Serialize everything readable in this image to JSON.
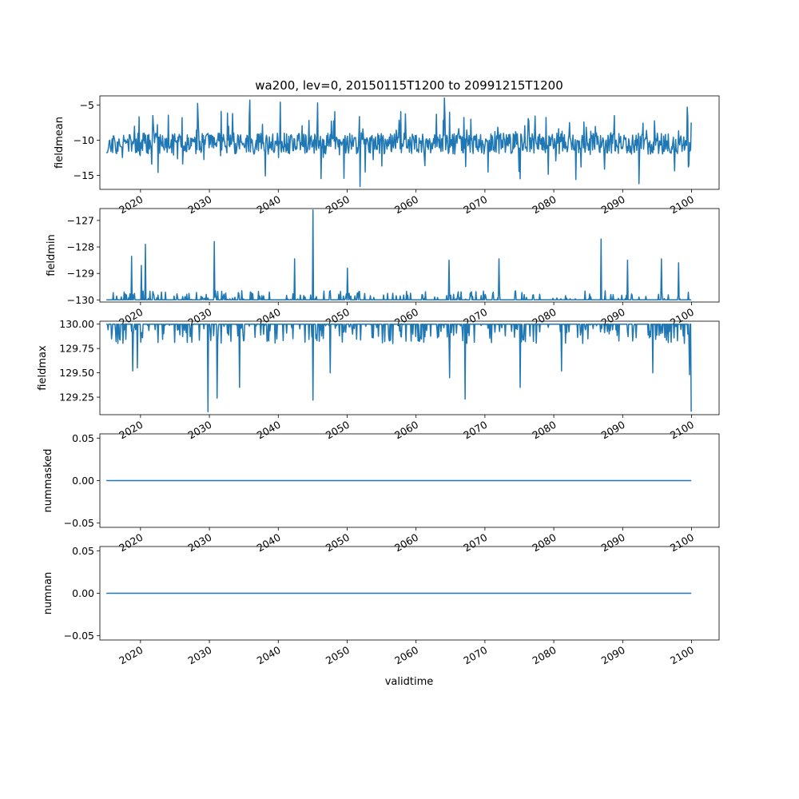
{
  "figure": {
    "title": "wa200, lev=0, 20150115T1200 to 20991215T1200",
    "xlabel": "validtime",
    "line_color": "#1f77b4"
  },
  "chart_data": [
    {
      "type": "line",
      "ylabel": "fieldmean",
      "xlim": [
        2014.1,
        2104.0
      ],
      "ylim": [
        -17.0,
        -3.7
      ],
      "yticks": [
        -15,
        -10,
        -5
      ],
      "ytick_labels": [
        "−15",
        "−10",
        "−5"
      ],
      "xticks": [
        2020,
        2030,
        2040,
        2050,
        2060,
        2070,
        2080,
        2090,
        2100
      ],
      "xtick_labels": [
        "2020",
        "2030",
        "2040",
        "2050",
        "2060",
        "2070",
        "2080",
        "2090",
        "2100"
      ],
      "series_params": {
        "start": 2015.04,
        "end": 2099.96,
        "step": 0.08333,
        "baseline": -10.5,
        "noise": 1.5,
        "up_rate": 0.09,
        "up_mag": 4.5,
        "down_rate": 0.04,
        "down_mag": 4.0,
        "seed": 11
      },
      "anchors": [
        {
          "x": 2015.04,
          "y": -11.8
        },
        {
          "x": 2021.8,
          "y": -6.5
        },
        {
          "x": 2022.5,
          "y": -14.6
        },
        {
          "x": 2026.0,
          "y": -6.8
        },
        {
          "x": 2035.9,
          "y": -4.3
        },
        {
          "x": 2040.3,
          "y": -4.6
        },
        {
          "x": 2045.7,
          "y": -4.7
        },
        {
          "x": 2051.9,
          "y": -16.6
        },
        {
          "x": 2064.1,
          "y": -4.0
        },
        {
          "x": 2083.2,
          "y": -15.6
        },
        {
          "x": 2092.4,
          "y": -16.2
        },
        {
          "x": 2099.4,
          "y": -5.3
        },
        {
          "x": 2099.96,
          "y": -7.5
        }
      ]
    },
    {
      "type": "line",
      "ylabel": "fieldmin",
      "xlim": [
        2014.1,
        2104.0
      ],
      "ylim": [
        -130.08,
        -126.55
      ],
      "yticks": [
        -130,
        -129,
        -128,
        -127
      ],
      "ytick_labels": [
        "−130",
        "−129",
        "−128",
        "−127"
      ],
      "xticks": [
        2020,
        2030,
        2040,
        2050,
        2060,
        2070,
        2080,
        2090,
        2100
      ],
      "xtick_labels": [
        "2020",
        "2030",
        "2040",
        "2050",
        "2060",
        "2070",
        "2080",
        "2090",
        "2100"
      ],
      "series_params": {
        "start": 2015.04,
        "end": 2099.96,
        "step": 0.08333,
        "baseline": -130.0,
        "noise": 0.0,
        "up_rate": 0.16,
        "up_mag": 0.35,
        "down_rate": 0.0,
        "down_mag": 0.0,
        "seed": 23
      },
      "anchors": [
        {
          "x": 2018.7,
          "y": -128.35
        },
        {
          "x": 2020.1,
          "y": -128.7
        },
        {
          "x": 2020.7,
          "y": -127.9
        },
        {
          "x": 2030.7,
          "y": -127.8
        },
        {
          "x": 2042.4,
          "y": -128.45
        },
        {
          "x": 2045.0,
          "y": -126.6
        },
        {
          "x": 2050.0,
          "y": -128.8
        },
        {
          "x": 2064.8,
          "y": -128.5
        },
        {
          "x": 2072.0,
          "y": -128.45
        },
        {
          "x": 2086.9,
          "y": -127.7
        },
        {
          "x": 2090.7,
          "y": -128.5
        },
        {
          "x": 2095.6,
          "y": -128.45
        },
        {
          "x": 2098.1,
          "y": -128.6
        }
      ]
    },
    {
      "type": "line",
      "ylabel": "fieldmax",
      "xlim": [
        2014.1,
        2104.0
      ],
      "ylim": [
        129.07,
        130.03
      ],
      "yticks": [
        129.25,
        129.5,
        129.75,
        130.0
      ],
      "ytick_labels": [
        "129.25",
        "129.50",
        "129.75",
        "130.00"
      ],
      "xticks": [
        2020,
        2030,
        2040,
        2050,
        2060,
        2070,
        2080,
        2090,
        2100
      ],
      "xtick_labels": [
        "2020",
        "2030",
        "2040",
        "2050",
        "2060",
        "2070",
        "2080",
        "2090",
        "2100"
      ],
      "series_params": {
        "start": 2015.04,
        "end": 2099.96,
        "step": 0.08333,
        "baseline": 130.0,
        "noise": 0.0,
        "up_rate": 0.0,
        "up_mag": 0.0,
        "down_rate": 0.22,
        "down_mag": 0.2,
        "seed": 37
      },
      "anchors": [
        {
          "x": 2018.9,
          "y": 129.52
        },
        {
          "x": 2019.5,
          "y": 129.55
        },
        {
          "x": 2029.8,
          "y": 129.1
        },
        {
          "x": 2031.1,
          "y": 129.24
        },
        {
          "x": 2034.4,
          "y": 129.35
        },
        {
          "x": 2045.0,
          "y": 129.22
        },
        {
          "x": 2047.5,
          "y": 129.5
        },
        {
          "x": 2064.9,
          "y": 129.45
        },
        {
          "x": 2067.1,
          "y": 129.23
        },
        {
          "x": 2075.1,
          "y": 129.35
        },
        {
          "x": 2081.1,
          "y": 129.52
        },
        {
          "x": 2094.4,
          "y": 129.5
        },
        {
          "x": 2099.7,
          "y": 129.48
        },
        {
          "x": 2099.96,
          "y": 129.1
        }
      ]
    },
    {
      "type": "line",
      "ylabel": "nummasked",
      "xlim": [
        2014.1,
        2104.0
      ],
      "ylim": [
        -0.055,
        0.055
      ],
      "yticks": [
        -0.05,
        0.0,
        0.05
      ],
      "ytick_labels": [
        "−0.05",
        "0.00",
        "0.05"
      ],
      "xticks": [
        2020,
        2030,
        2040,
        2050,
        2060,
        2070,
        2080,
        2090,
        2100
      ],
      "xtick_labels": [
        "2020",
        "2030",
        "2040",
        "2050",
        "2060",
        "2070",
        "2080",
        "2090",
        "2100"
      ],
      "x": [
        2015.04,
        2099.96
      ],
      "y": [
        0,
        0
      ]
    },
    {
      "type": "line",
      "ylabel": "numnan",
      "xlim": [
        2014.1,
        2104.0
      ],
      "ylim": [
        -0.055,
        0.055
      ],
      "yticks": [
        -0.05,
        0.0,
        0.05
      ],
      "ytick_labels": [
        "−0.05",
        "0.00",
        "0.05"
      ],
      "xticks": [
        2020,
        2030,
        2040,
        2050,
        2060,
        2070,
        2080,
        2090,
        2100
      ],
      "xtick_labels": [
        "2020",
        "2030",
        "2040",
        "2050",
        "2060",
        "2070",
        "2080",
        "2090",
        "2100"
      ],
      "x": [
        2015.04,
        2099.96
      ],
      "y": [
        0,
        0
      ]
    }
  ]
}
